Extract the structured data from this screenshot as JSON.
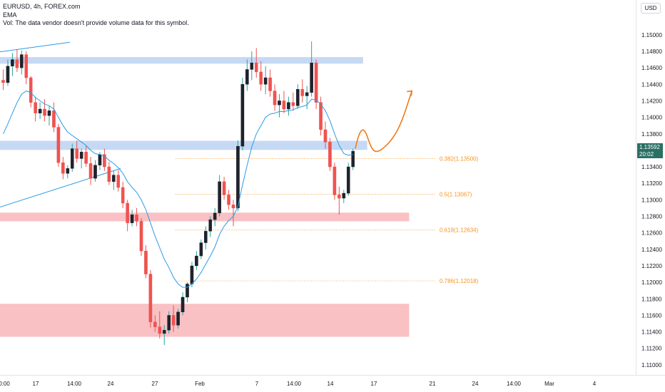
{
  "legend": {
    "symbol_line": "EURUSD, 4h, FOREX.com",
    "indicator": "EMA",
    "volume_note": "Vol: The data vendor doesn't provide volume data for this symbol."
  },
  "currency_badge": "USD",
  "last_price": {
    "value": "1.13592",
    "countdown": "20:02",
    "color": "#2a6f63"
  },
  "chart_data": {
    "type": "candlestick",
    "symbol": "EURUSD",
    "timeframe": "4h",
    "source": "FOREX.com",
    "y_axis": {
      "ylim": [
        1.1093,
        1.1537
      ],
      "ticks": [
        "1.15000",
        "1.14800",
        "1.14600",
        "1.14400",
        "1.14200",
        "1.14000",
        "1.13800",
        "1.13600",
        "1.13400",
        "1.13200",
        "1.13000",
        "1.12800",
        "1.12600",
        "1.12400",
        "1.12200",
        "1.12000",
        "1.11800",
        "1.11600",
        "1.11400",
        "1.11200",
        "1.11000"
      ]
    },
    "x_axis": {
      "ticks": [
        "0:00",
        "17",
        "14:00",
        "24",
        "27",
        "Feb",
        "7",
        "14:00",
        "14",
        "17",
        "21",
        "24",
        "14:00",
        "Mar",
        "4"
      ]
    },
    "candles": [
      {
        "t": 0,
        "o": 1.1445,
        "h": 1.1458,
        "l": 1.1433,
        "c": 1.1442
      },
      {
        "t": 1,
        "o": 1.1442,
        "h": 1.147,
        "l": 1.1438,
        "c": 1.1462
      },
      {
        "t": 2,
        "o": 1.1462,
        "h": 1.1478,
        "l": 1.145,
        "c": 1.147
      },
      {
        "t": 3,
        "o": 1.147,
        "h": 1.1482,
        "l": 1.1455,
        "c": 1.146
      },
      {
        "t": 4,
        "o": 1.146,
        "h": 1.1481,
        "l": 1.1452,
        "c": 1.1476
      },
      {
        "t": 5,
        "o": 1.1476,
        "h": 1.148,
        "l": 1.144,
        "c": 1.1448
      },
      {
        "t": 6,
        "o": 1.1448,
        "h": 1.145,
        "l": 1.1412,
        "c": 1.1418
      },
      {
        "t": 7,
        "o": 1.1418,
        "h": 1.1425,
        "l": 1.1395,
        "c": 1.1405
      },
      {
        "t": 8,
        "o": 1.1405,
        "h": 1.1418,
        "l": 1.1398,
        "c": 1.141
      },
      {
        "t": 9,
        "o": 1.141,
        "h": 1.1422,
        "l": 1.1395,
        "c": 1.1402
      },
      {
        "t": 10,
        "o": 1.1402,
        "h": 1.1414,
        "l": 1.139,
        "c": 1.1408
      },
      {
        "t": 11,
        "o": 1.1408,
        "h": 1.1418,
        "l": 1.1382,
        "c": 1.1388
      },
      {
        "t": 12,
        "o": 1.1388,
        "h": 1.1392,
        "l": 1.134,
        "c": 1.1345
      },
      {
        "t": 13,
        "o": 1.1345,
        "h": 1.1352,
        "l": 1.1325,
        "c": 1.1332
      },
      {
        "t": 14,
        "o": 1.1332,
        "h": 1.1342,
        "l": 1.1326,
        "c": 1.1338
      },
      {
        "t": 15,
        "o": 1.1338,
        "h": 1.1368,
        "l": 1.1334,
        "c": 1.1362
      },
      {
        "t": 16,
        "o": 1.1362,
        "h": 1.1372,
        "l": 1.1345,
        "c": 1.135
      },
      {
        "t": 17,
        "o": 1.135,
        "h": 1.1362,
        "l": 1.1338,
        "c": 1.1358
      },
      {
        "t": 18,
        "o": 1.1358,
        "h": 1.1366,
        "l": 1.134,
        "c": 1.1344
      },
      {
        "t": 19,
        "o": 1.1344,
        "h": 1.1352,
        "l": 1.1318,
        "c": 1.1326
      },
      {
        "t": 20,
        "o": 1.1326,
        "h": 1.1348,
        "l": 1.1322,
        "c": 1.1342
      },
      {
        "t": 21,
        "o": 1.1342,
        "h": 1.1358,
        "l": 1.1336,
        "c": 1.1355
      },
      {
        "t": 22,
        "o": 1.1355,
        "h": 1.1362,
        "l": 1.1335,
        "c": 1.134
      },
      {
        "t": 23,
        "o": 1.134,
        "h": 1.1346,
        "l": 1.1318,
        "c": 1.1322
      },
      {
        "t": 24,
        "o": 1.1322,
        "h": 1.1335,
        "l": 1.1312,
        "c": 1.133
      },
      {
        "t": 25,
        "o": 1.133,
        "h": 1.1336,
        "l": 1.131,
        "c": 1.1315
      },
      {
        "t": 26,
        "o": 1.1315,
        "h": 1.1322,
        "l": 1.129,
        "c": 1.1296
      },
      {
        "t": 27,
        "o": 1.1296,
        "h": 1.13,
        "l": 1.1262,
        "c": 1.1272
      },
      {
        "t": 28,
        "o": 1.1272,
        "h": 1.1288,
        "l": 1.1268,
        "c": 1.1282
      },
      {
        "t": 29,
        "o": 1.1282,
        "h": 1.129,
        "l": 1.1268,
        "c": 1.1274
      },
      {
        "t": 30,
        "o": 1.1274,
        "h": 1.1278,
        "l": 1.1232,
        "c": 1.1238
      },
      {
        "t": 31,
        "o": 1.1238,
        "h": 1.1245,
        "l": 1.1205,
        "c": 1.121
      },
      {
        "t": 32,
        "o": 1.121,
        "h": 1.1215,
        "l": 1.1145,
        "c": 1.1152
      },
      {
        "t": 33,
        "o": 1.1152,
        "h": 1.116,
        "l": 1.114,
        "c": 1.1146
      },
      {
        "t": 34,
        "o": 1.1146,
        "h": 1.1165,
        "l": 1.1132,
        "c": 1.1138
      },
      {
        "t": 35,
        "o": 1.1138,
        "h": 1.1148,
        "l": 1.1124,
        "c": 1.1142
      },
      {
        "t": 36,
        "o": 1.1142,
        "h": 1.1165,
        "l": 1.1138,
        "c": 1.116
      },
      {
        "t": 37,
        "o": 1.116,
        "h": 1.1172,
        "l": 1.114,
        "c": 1.1148
      },
      {
        "t": 38,
        "o": 1.1148,
        "h": 1.1168,
        "l": 1.1144,
        "c": 1.1164
      },
      {
        "t": 39,
        "o": 1.1164,
        "h": 1.1188,
        "l": 1.116,
        "c": 1.1182
      },
      {
        "t": 40,
        "o": 1.1182,
        "h": 1.12,
        "l": 1.1176,
        "c": 1.1198
      },
      {
        "t": 41,
        "o": 1.1198,
        "h": 1.1225,
        "l": 1.1194,
        "c": 1.122
      },
      {
        "t": 42,
        "o": 1.122,
        "h": 1.1238,
        "l": 1.1215,
        "c": 1.1232
      },
      {
        "t": 43,
        "o": 1.1232,
        "h": 1.1252,
        "l": 1.1228,
        "c": 1.1248
      },
      {
        "t": 44,
        "o": 1.1248,
        "h": 1.1268,
        "l": 1.124,
        "c": 1.1262
      },
      {
        "t": 45,
        "o": 1.1262,
        "h": 1.128,
        "l": 1.1255,
        "c": 1.1276
      },
      {
        "t": 46,
        "o": 1.1276,
        "h": 1.129,
        "l": 1.1268,
        "c": 1.1284
      },
      {
        "t": 47,
        "o": 1.1284,
        "h": 1.133,
        "l": 1.128,
        "c": 1.1322
      },
      {
        "t": 48,
        "o": 1.1322,
        "h": 1.1328,
        "l": 1.13,
        "c": 1.1306
      },
      {
        "t": 49,
        "o": 1.1306,
        "h": 1.1312,
        "l": 1.1288,
        "c": 1.1294
      },
      {
        "t": 50,
        "o": 1.1294,
        "h": 1.13,
        "l": 1.1268,
        "c": 1.129
      },
      {
        "t": 51,
        "o": 1.129,
        "h": 1.1372,
        "l": 1.1286,
        "c": 1.1365
      },
      {
        "t": 52,
        "o": 1.1365,
        "h": 1.1448,
        "l": 1.136,
        "c": 1.144
      },
      {
        "t": 53,
        "o": 1.144,
        "h": 1.147,
        "l": 1.1432,
        "c": 1.1458
      },
      {
        "t": 54,
        "o": 1.1458,
        "h": 1.148,
        "l": 1.1445,
        "c": 1.1466
      },
      {
        "t": 55,
        "o": 1.1466,
        "h": 1.1484,
        "l": 1.1448,
        "c": 1.1455
      },
      {
        "t": 56,
        "o": 1.1455,
        "h": 1.1468,
        "l": 1.1432,
        "c": 1.144
      },
      {
        "t": 57,
        "o": 1.144,
        "h": 1.1462,
        "l": 1.1428,
        "c": 1.1448
      },
      {
        "t": 58,
        "o": 1.1448,
        "h": 1.1458,
        "l": 1.1425,
        "c": 1.1432
      },
      {
        "t": 59,
        "o": 1.1432,
        "h": 1.144,
        "l": 1.1408,
        "c": 1.1415
      },
      {
        "t": 60,
        "o": 1.1415,
        "h": 1.1428,
        "l": 1.14,
        "c": 1.142
      },
      {
        "t": 61,
        "o": 1.142,
        "h": 1.1432,
        "l": 1.1405,
        "c": 1.141
      },
      {
        "t": 62,
        "o": 1.141,
        "h": 1.1425,
        "l": 1.1402,
        "c": 1.1418
      },
      {
        "t": 63,
        "o": 1.1418,
        "h": 1.143,
        "l": 1.1408,
        "c": 1.1414
      },
      {
        "t": 64,
        "o": 1.1414,
        "h": 1.144,
        "l": 1.141,
        "c": 1.1434
      },
      {
        "t": 65,
        "o": 1.1434,
        "h": 1.1446,
        "l": 1.1418,
        "c": 1.1426
      },
      {
        "t": 66,
        "o": 1.1426,
        "h": 1.1438,
        "l": 1.141,
        "c": 1.143
      },
      {
        "t": 67,
        "o": 1.143,
        "h": 1.1492,
        "l": 1.1425,
        "c": 1.1466
      },
      {
        "t": 68,
        "o": 1.1466,
        "h": 1.147,
        "l": 1.141,
        "c": 1.1418
      },
      {
        "t": 69,
        "o": 1.1418,
        "h": 1.1425,
        "l": 1.1378,
        "c": 1.1385
      },
      {
        "t": 70,
        "o": 1.1385,
        "h": 1.1395,
        "l": 1.1362,
        "c": 1.137
      },
      {
        "t": 71,
        "o": 1.137,
        "h": 1.1375,
        "l": 1.1335,
        "c": 1.134
      },
      {
        "t": 72,
        "o": 1.134,
        "h": 1.1345,
        "l": 1.13,
        "c": 1.1306
      },
      {
        "t": 73,
        "o": 1.1306,
        "h": 1.1316,
        "l": 1.1282,
        "c": 1.1302
      },
      {
        "t": 74,
        "o": 1.1302,
        "h": 1.1312,
        "l": 1.1296,
        "c": 1.1308
      },
      {
        "t": 75,
        "o": 1.1308,
        "h": 1.1345,
        "l": 1.1305,
        "c": 1.134
      },
      {
        "t": 76,
        "o": 1.134,
        "h": 1.1362,
        "l": 1.1336,
        "c": 1.1359
      }
    ],
    "ema": [
      1.138,
      1.1392,
      1.1405,
      1.1418,
      1.1428,
      1.1432,
      1.143,
      1.1424,
      1.142,
      1.1416,
      1.1414,
      1.141,
      1.14,
      1.139,
      1.1382,
      1.1378,
      1.1374,
      1.137,
      1.1366,
      1.136,
      1.1356,
      1.1355,
      1.1353,
      1.1348,
      1.1344,
      1.1339,
      1.1332,
      1.1322,
      1.1315,
      1.1309,
      1.13,
      1.1288,
      1.1272,
      1.1256,
      1.1242,
      1.1228,
      1.1218,
      1.1206,
      1.1198,
      1.1194,
      1.1194,
      1.1198,
      1.1204,
      1.1212,
      1.1222,
      1.1232,
      1.1243,
      1.1258,
      1.1268,
      1.1275,
      1.128,
      1.1292,
      1.1318,
      1.1342,
      1.1364,
      1.138,
      1.139,
      1.14,
      1.1404,
      1.1405,
      1.1407,
      1.1407,
      1.1408,
      1.1409,
      1.1412,
      1.1413,
      1.1415,
      1.1422,
      1.1421,
      1.1416,
      1.1408,
      1.1396,
      1.138,
      1.1366,
      1.1356,
      1.1354,
      1.1355
    ],
    "zones": [
      {
        "name": "resistance-top",
        "y1": 1.1473,
        "y2": 1.1465,
        "color": "#bcd2f2",
        "x_end": 78.2
      },
      {
        "name": "resistance-mid",
        "y1": 1.13715,
        "y2": 1.13605,
        "color": "#bcd2f2",
        "x_end": 79.1
      },
      {
        "name": "support-mid",
        "y1": 1.12845,
        "y2": 1.1274,
        "color": "#f8b6ba",
        "x_end": 88.2
      },
      {
        "name": "support-low",
        "y1": 1.1174,
        "y2": 1.1134,
        "color": "#f8b6ba",
        "x_end": 88.2
      }
    ],
    "trendlines": [
      {
        "name": "upper-trendline",
        "points": [
          [
            -2.5,
            1.1478
          ],
          [
            14.5,
            1.1491
          ]
        ],
        "color": "#2a9be8"
      },
      {
        "name": "lower-trendline",
        "points": [
          [
            -2.5,
            1.1288
          ],
          [
            25.5,
            1.1338
          ]
        ],
        "color": "#2a9be8"
      }
    ],
    "fibonacci": [
      {
        "level": "0.382",
        "price": "1.13500",
        "label": "0.382(1.13500)",
        "y": 1.135
      },
      {
        "level": "0.5",
        "price": "1.13067",
        "label": "0.5(1.13067)",
        "y": 1.13067
      },
      {
        "level": "0.618",
        "price": "1.12634",
        "label": "0.618(1.12634)",
        "y": 1.12634
      },
      {
        "level": "0.786",
        "price": "1.12018",
        "label": "0.786(1.12018)",
        "y": 1.12018
      }
    ],
    "fib_color": "#f7931e",
    "projection": {
      "color": "#f07a1a",
      "points": [
        [
          76.5,
          1.1362
        ],
        [
          77.2,
          1.1378
        ],
        [
          78.0,
          1.1386
        ],
        [
          78.8,
          1.1382
        ],
        [
          79.5,
          1.137
        ],
        [
          80.3,
          1.136
        ],
        [
          81.3,
          1.1358
        ],
        [
          82.5,
          1.1362
        ],
        [
          84.0,
          1.137
        ],
        [
          85.5,
          1.1382
        ],
        [
          86.8,
          1.1398
        ],
        [
          87.8,
          1.1415
        ],
        [
          88.8,
          1.1432
        ]
      ]
    },
    "colors": {
      "up": "#26a69a",
      "down": "#ef5350",
      "candle_body_up": "#1e222d",
      "ema": "#2a9be8"
    }
  }
}
